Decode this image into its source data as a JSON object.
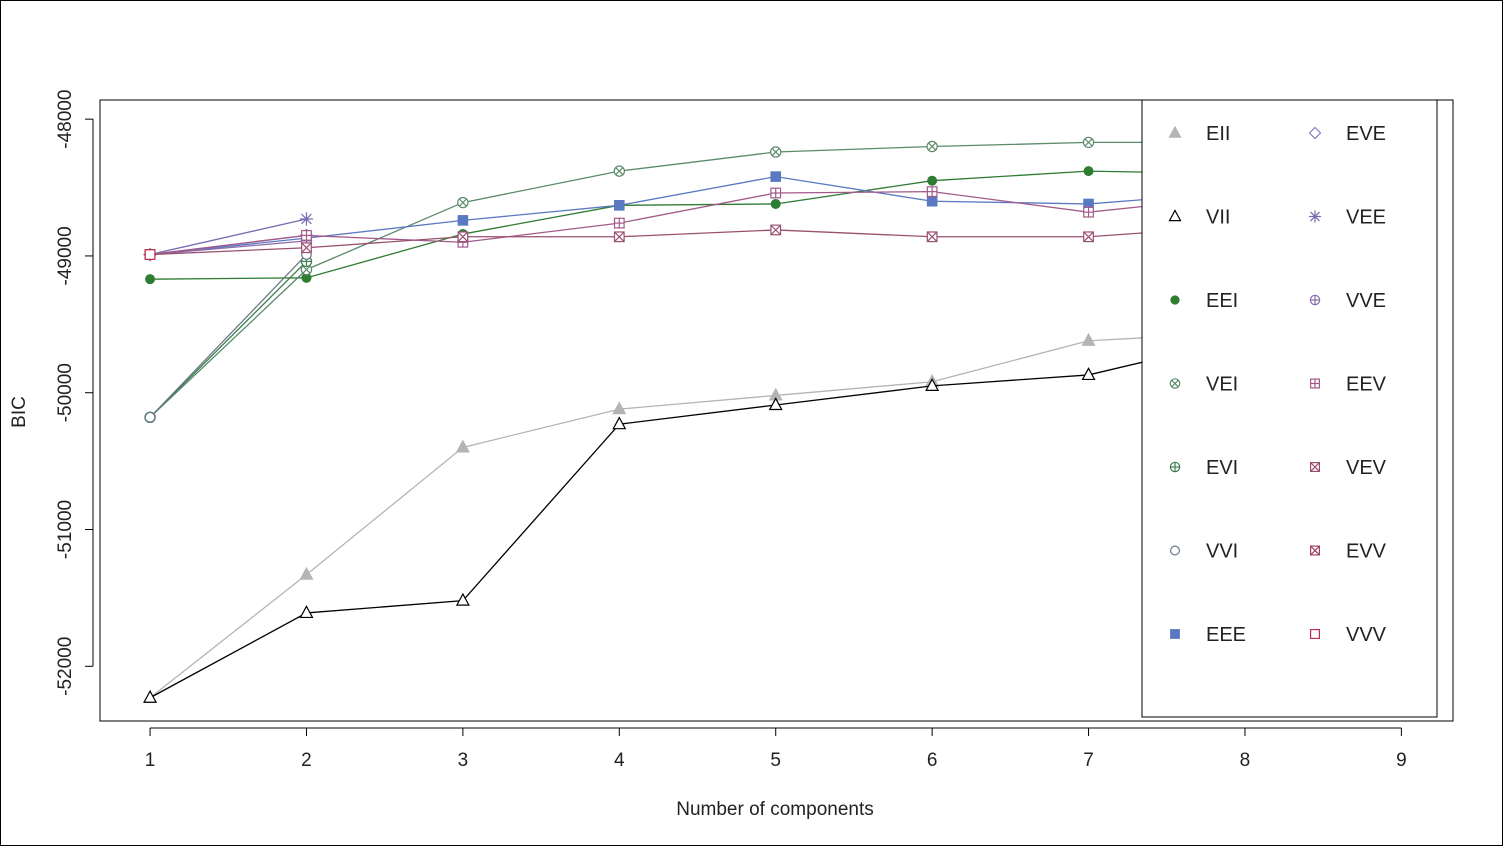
{
  "chart_data": {
    "type": "line",
    "xlabel": "Number of components",
    "ylabel": "BIC",
    "x": [
      1,
      2,
      3,
      4,
      5,
      6,
      7,
      8,
      9
    ],
    "x_ticks": [
      "1",
      "2",
      "3",
      "4",
      "5",
      "6",
      "7",
      "8",
      "9"
    ],
    "y_ticks": [
      {
        "value": -48000,
        "label": "-48000"
      },
      {
        "value": -49000,
        "label": "-49000"
      },
      {
        "value": -50000,
        "label": "-50000"
      },
      {
        "value": -51000,
        "label": "-51000"
      },
      {
        "value": -52000,
        "label": "-52000"
      }
    ],
    "xlim": [
      0.68,
      9.33
    ],
    "ylim": [
      -52400,
      -47860
    ],
    "legend_position": "right, overlapping plot",
    "series": [
      {
        "name": "EII",
        "symbol": "triangle-filled",
        "color": "#b4b4b4",
        "values": [
          -52230,
          -51330,
          -50400,
          -50120,
          -50020,
          -49920,
          -49620,
          -49560,
          null
        ]
      },
      {
        "name": "VII",
        "symbol": "triangle-open",
        "color": "#000000",
        "values": [
          -52230,
          -51610,
          -51520,
          -50230,
          -50090,
          -49950,
          -49870,
          -49600,
          null
        ]
      },
      {
        "name": "EEI",
        "symbol": "dot-filled",
        "color": "#2e7d32",
        "values": [
          -49170,
          -49160,
          -48840,
          -48630,
          -48620,
          -48450,
          -48380,
          -48400,
          null
        ]
      },
      {
        "name": "VEI",
        "symbol": "circle-x",
        "color": "#5a8a6a",
        "values": [
          -50180,
          -49100,
          -48610,
          -48380,
          -48240,
          -48200,
          -48170,
          -48170,
          null
        ]
      },
      {
        "name": "EVI",
        "symbol": "circle-plus",
        "color": "#3f7f4f",
        "values": [
          -50180,
          -49040,
          null,
          null,
          null,
          null,
          null,
          null,
          null
        ]
      },
      {
        "name": "VVI",
        "symbol": "circle-open",
        "color": "#6a7a8a",
        "values": [
          -50180,
          -48990,
          null,
          null,
          null,
          null,
          null,
          null,
          null
        ]
      },
      {
        "name": "EEE",
        "symbol": "square-filled",
        "color": "#5b79c2",
        "values": [
          -48990,
          -48870,
          -48740,
          -48630,
          -48420,
          -48600,
          -48620,
          -48530,
          null
        ]
      },
      {
        "name": "EVE",
        "symbol": "diamond-open",
        "color": "#8a7ac0",
        "values": [
          -48990,
          -48850,
          null,
          null,
          null,
          null,
          null,
          null,
          null
        ]
      },
      {
        "name": "VEE",
        "symbol": "asterisk",
        "color": "#7a6ab0",
        "values": [
          -48990,
          -48730,
          null,
          null,
          null,
          null,
          null,
          null,
          null
        ]
      },
      {
        "name": "VVE",
        "symbol": "circle-plus",
        "color": "#8a6aa8",
        "values": [
          -48990,
          -48890,
          null,
          null,
          null,
          null,
          null,
          null,
          null
        ]
      },
      {
        "name": "EEV",
        "symbol": "square-plus",
        "color": "#a25a8a",
        "values": [
          -48990,
          -48850,
          -48900,
          -48760,
          -48540,
          -48530,
          -48680,
          -48560,
          null
        ]
      },
      {
        "name": "VEV",
        "symbol": "square-x",
        "color": "#9a5070",
        "values": [
          -48990,
          -48940,
          -48860,
          -48860,
          -48810,
          -48860,
          -48860,
          -48780,
          null
        ]
      },
      {
        "name": "EVV",
        "symbol": "square-x",
        "color": "#a0405a",
        "values": [
          -48990,
          null,
          null,
          null,
          null,
          null,
          null,
          null,
          null
        ]
      },
      {
        "name": "VVV",
        "symbol": "square-open",
        "color": "#c03050",
        "values": [
          -48990,
          null,
          null,
          null,
          null,
          null,
          null,
          null,
          null
        ]
      }
    ]
  }
}
